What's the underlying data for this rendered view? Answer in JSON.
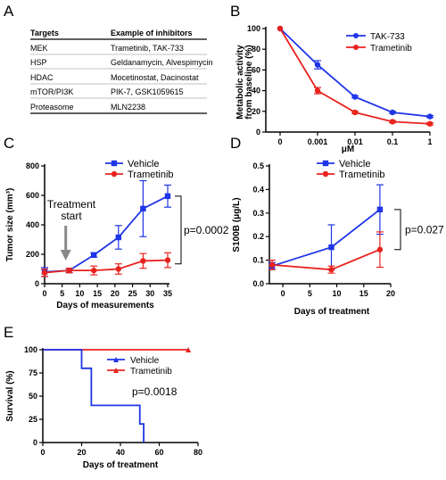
{
  "panels": {
    "a": "A",
    "b": "B",
    "c": "C",
    "d": "D",
    "e": "E"
  },
  "table": {
    "headers": [
      "Targets",
      "Example of inhibitors"
    ],
    "rows": [
      [
        "MEK",
        "Trametinib, TAK-733"
      ],
      [
        "HSP",
        "Geldanamycin, Alvespimycin"
      ],
      [
        "HDAC",
        "Mocetinostat, Dacinostat"
      ],
      [
        "mTOR/PI3K",
        "PIK-7, GSK1059615"
      ],
      [
        "Proteasome",
        "MLN2238"
      ]
    ]
  },
  "colors": {
    "blue": "#1f35e6",
    "red": "#e8231f",
    "black": "#000000"
  },
  "chart_data": [
    {
      "id": "B",
      "type": "line",
      "ylabel": "Metabolic activity\nfrom baseline (%)",
      "xlabel": "μM",
      "categories": [
        "0",
        "0.001",
        "0.01",
        "0.1",
        "1"
      ],
      "ylim": [
        0,
        100
      ],
      "yticks": [
        0,
        20,
        40,
        60,
        80,
        100
      ],
      "legend_position": "top-right",
      "series": [
        {
          "name": "TAK-733",
          "color": "blue",
          "marker": "circle",
          "values": [
            100,
            65,
            34,
            19,
            15
          ],
          "errors": [
            0,
            4,
            1,
            1,
            1
          ]
        },
        {
          "name": "Trametinib",
          "color": "red",
          "marker": "circle",
          "values": [
            100,
            40,
            19,
            10,
            8
          ],
          "errors": [
            0,
            3,
            1,
            1,
            1
          ]
        }
      ]
    },
    {
      "id": "C",
      "type": "line",
      "ylabel": "Tumor size (mm³)",
      "xlabel": "Days of measurements",
      "xlim": [
        0,
        35
      ],
      "xticks": [
        0,
        5,
        10,
        15,
        20,
        25,
        30,
        35
      ],
      "ylim": [
        0,
        800
      ],
      "yticks": [
        0,
        200,
        400,
        600,
        800
      ],
      "legend_position": "top-center",
      "annotation": {
        "text": "Treatment\nstart",
        "x": 5
      },
      "pvalue": "p=0.0002",
      "series": [
        {
          "name": "Vehicle",
          "color": "blue",
          "marker": "square",
          "x": [
            0,
            7,
            14,
            21,
            28,
            35
          ],
          "values": [
            80,
            90,
            195,
            315,
            510,
            595
          ],
          "errors": [
            30,
            15,
            15,
            80,
            190,
            75
          ]
        },
        {
          "name": "Trametinib",
          "color": "red",
          "marker": "circle",
          "x": [
            0,
            7,
            14,
            21,
            28,
            35
          ],
          "values": [
            75,
            90,
            90,
            100,
            155,
            160
          ],
          "errors": [
            25,
            15,
            30,
            35,
            50,
            50
          ]
        }
      ]
    },
    {
      "id": "D",
      "type": "line",
      "ylabel": "S100B (μg/L)",
      "xlabel": "Days of treatment",
      "xlim": [
        -2.5,
        20
      ],
      "xticks": [
        0,
        5,
        10,
        15,
        20
      ],
      "ylim": [
        0,
        0.5
      ],
      "yticks": [
        0.0,
        0.1,
        0.2,
        0.3,
        0.4,
        0.5
      ],
      "legend_position": "top-right",
      "pvalue": "p=0.027",
      "series": [
        {
          "name": "Vehicle",
          "color": "blue",
          "marker": "square",
          "x": [
            -2,
            9,
            18
          ],
          "values": [
            0.075,
            0.155,
            0.315
          ],
          "errors": [
            0.015,
            0.095,
            0.105
          ]
        },
        {
          "name": "Trametinib",
          "color": "red",
          "marker": "circle",
          "x": [
            -2,
            9,
            18
          ],
          "values": [
            0.08,
            0.06,
            0.145
          ],
          "errors": [
            0.02,
            0.015,
            0.075
          ]
        }
      ]
    },
    {
      "id": "E",
      "type": "line",
      "ylabel": "Survival (%)",
      "xlabel": "Days of treatment",
      "xlim": [
        0,
        80
      ],
      "xticks": [
        0,
        20,
        40,
        60,
        80
      ],
      "ylim": [
        0,
        100
      ],
      "yticks": [
        0,
        25,
        50,
        75,
        100
      ],
      "legend_position": "top-right",
      "pvalue": "p=0.0018",
      "series": [
        {
          "name": "Vehicle",
          "color": "blue",
          "marker": "triangle",
          "steps": [
            [
              0,
              100
            ],
            [
              20,
              100
            ],
            [
              20,
              80
            ],
            [
              25,
              80
            ],
            [
              25,
              40
            ],
            [
              50,
              40
            ],
            [
              50,
              20
            ],
            [
              52,
              20
            ],
            [
              52,
              0
            ]
          ]
        },
        {
          "name": "Trametinib",
          "color": "red",
          "marker": "triangle",
          "steps": [
            [
              0,
              100
            ],
            [
              75,
              100
            ]
          ]
        }
      ]
    }
  ]
}
